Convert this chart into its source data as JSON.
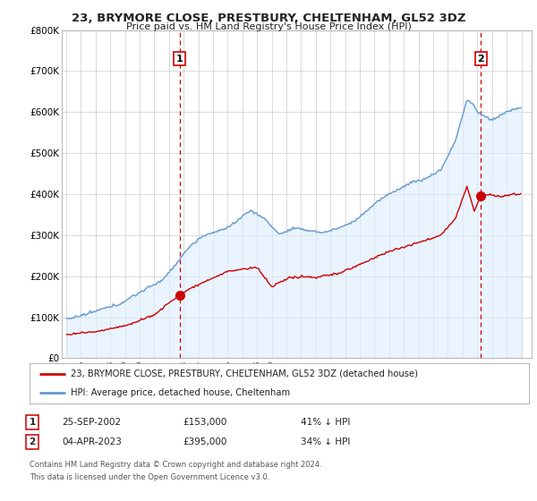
{
  "title": "23, BRYMORE CLOSE, PRESTBURY, CHELTENHAM, GL52 3DZ",
  "subtitle": "Price paid vs. HM Land Registry's House Price Index (HPI)",
  "ylim": [
    0,
    800000
  ],
  "yticks": [
    0,
    100000,
    200000,
    300000,
    400000,
    500000,
    600000,
    700000,
    800000
  ],
  "ytick_labels": [
    "£0",
    "£100K",
    "£200K",
    "£300K",
    "£400K",
    "£500K",
    "£600K",
    "£700K",
    "£800K"
  ],
  "hpi_color": "#6699cc",
  "hpi_fill": "#ddeeff",
  "price_color": "#cc0000",
  "grid_color": "#cccccc",
  "background_color": "#ffffff",
  "sale1_date": "25-SEP-2002",
  "sale1_price": 153000,
  "sale1_pct": "41% ↓ HPI",
  "sale1_label": "1",
  "sale1_x": 2002.73,
  "sale2_date": "04-APR-2023",
  "sale2_price": 395000,
  "sale2_label": "2",
  "sale2_x": 2023.25,
  "sale2_pct": "34% ↓ HPI",
  "legend_line1": "23, BRYMORE CLOSE, PRESTBURY, CHELTENHAM, GL52 3DZ (detached house)",
  "legend_line2": "HPI: Average price, detached house, Cheltenham",
  "footer1": "Contains HM Land Registry data © Crown copyright and database right 2024.",
  "footer2": "This data is licensed under the Open Government Licence v3.0."
}
